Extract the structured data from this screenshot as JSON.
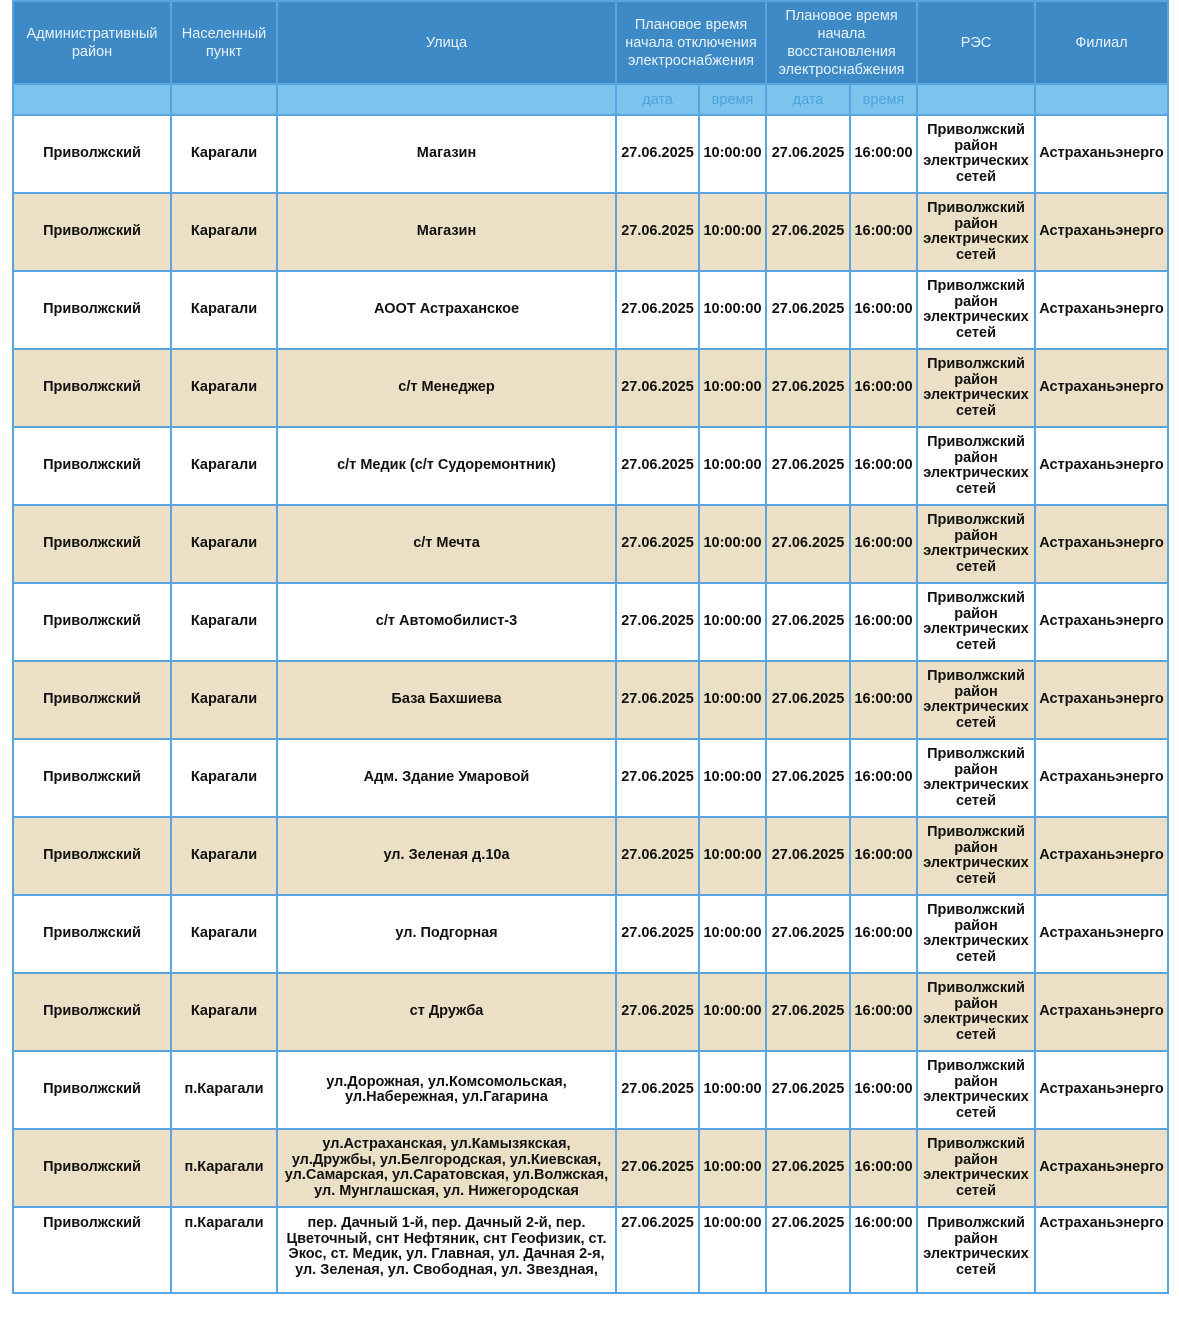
{
  "headers": {
    "district": "Административный район",
    "locality": "Населенный пункт",
    "street": "Улица",
    "outage_start": "Плановое время начала отключения электроснабжения",
    "restore_start": "Плановое время начала восстановления электроснабжения",
    "res": "РЭС",
    "branch": "Филиал",
    "date": "дата",
    "time": "время"
  },
  "colors": {
    "header": "#3d8ac6",
    "subheader": "#7cc4ee",
    "alt_row": "#ebdfc6",
    "border": "#5aa5e0"
  },
  "rows": [
    {
      "district": "Приволжский",
      "locality": "Карагали",
      "street": "Магазин",
      "off_date": "27.06.2025",
      "off_time": "10:00:00",
      "on_date": "27.06.2025",
      "on_time": "16:00:00",
      "res": "Приволжский район электрических сетей",
      "branch": "Астраханьэнерго"
    },
    {
      "district": "Приволжский",
      "locality": "Карагали",
      "street": "Магазин",
      "off_date": "27.06.2025",
      "off_time": "10:00:00",
      "on_date": "27.06.2025",
      "on_time": "16:00:00",
      "res": "Приволжский район электрических сетей",
      "branch": "Астраханьэнерго"
    },
    {
      "district": "Приволжский",
      "locality": "Карагали",
      "street": "АООТ Астраханское",
      "off_date": "27.06.2025",
      "off_time": "10:00:00",
      "on_date": "27.06.2025",
      "on_time": "16:00:00",
      "res": "Приволжский район электрических сетей",
      "branch": "Астраханьэнерго"
    },
    {
      "district": "Приволжский",
      "locality": "Карагали",
      "street": "с/т Менеджер",
      "off_date": "27.06.2025",
      "off_time": "10:00:00",
      "on_date": "27.06.2025",
      "on_time": "16:00:00",
      "res": "Приволжский район электрических сетей",
      "branch": "Астраханьэнерго"
    },
    {
      "district": "Приволжский",
      "locality": "Карагали",
      "street": "с/т Медик (с/т Судоремонтник)",
      "off_date": "27.06.2025",
      "off_time": "10:00:00",
      "on_date": "27.06.2025",
      "on_time": "16:00:00",
      "res": "Приволжский район электрических сетей",
      "branch": "Астраханьэнерго"
    },
    {
      "district": "Приволжский",
      "locality": "Карагали",
      "street": "с/т Мечта",
      "off_date": "27.06.2025",
      "off_time": "10:00:00",
      "on_date": "27.06.2025",
      "on_time": "16:00:00",
      "res": "Приволжский район электрических сетей",
      "branch": "Астраханьэнерго"
    },
    {
      "district": "Приволжский",
      "locality": "Карагали",
      "street": "с/т Автомобилист-3",
      "off_date": "27.06.2025",
      "off_time": "10:00:00",
      "on_date": "27.06.2025",
      "on_time": "16:00:00",
      "res": "Приволжский район электрических сетей",
      "branch": "Астраханьэнерго"
    },
    {
      "district": "Приволжский",
      "locality": "Карагали",
      "street": "База Бахшиева",
      "off_date": "27.06.2025",
      "off_time": "10:00:00",
      "on_date": "27.06.2025",
      "on_time": "16:00:00",
      "res": "Приволжский район электрических сетей",
      "branch": "Астраханьэнерго"
    },
    {
      "district": "Приволжский",
      "locality": "Карагали",
      "street": "Адм. Здание Умаровой",
      "off_date": "27.06.2025",
      "off_time": "10:00:00",
      "on_date": "27.06.2025",
      "on_time": "16:00:00",
      "res": "Приволжский район электрических сетей",
      "branch": "Астраханьэнерго"
    },
    {
      "district": "Приволжский",
      "locality": "Карагали",
      "street": "ул. Зеленая д.10а",
      "off_date": "27.06.2025",
      "off_time": "10:00:00",
      "on_date": "27.06.2025",
      "on_time": "16:00:00",
      "res": "Приволжский район электрических сетей",
      "branch": "Астраханьэнерго"
    },
    {
      "district": "Приволжский",
      "locality": "Карагали",
      "street": "ул. Подгорная",
      "off_date": "27.06.2025",
      "off_time": "10:00:00",
      "on_date": "27.06.2025",
      "on_time": "16:00:00",
      "res": "Приволжский район электрических сетей",
      "branch": "Астраханьэнерго"
    },
    {
      "district": "Приволжский",
      "locality": "Карагали",
      "street": "ст Дружба",
      "off_date": "27.06.2025",
      "off_time": "10:00:00",
      "on_date": "27.06.2025",
      "on_time": "16:00:00",
      "res": "Приволжский район электрических сетей",
      "branch": "Астраханьэнерго"
    },
    {
      "district": "Приволжский",
      "locality": "п.Карагали",
      "street": "ул.Дорожная, ул.Комсомольская, ул.Набережная, ул.Гагарина",
      "off_date": "27.06.2025",
      "off_time": "10:00:00",
      "on_date": "27.06.2025",
      "on_time": "16:00:00",
      "res": "Приволжский район электрических сетей",
      "branch": "Астраханьэнерго"
    },
    {
      "district": "Приволжский",
      "locality": "п.Карагали",
      "street": "ул.Астраханская, ул.Камызякская, ул.Дружбы, ул.Белгородская, ул.Киевская, ул.Самарская, ул.Саратовская, ул.Волжская, ул. Мунглашская, ул. Нижегородская",
      "off_date": "27.06.2025",
      "off_time": "10:00:00",
      "on_date": "27.06.2025",
      "on_time": "16:00:00",
      "res": "Приволжский район электрических сетей",
      "branch": "Астраханьэнерго"
    },
    {
      "district": "Приволжский",
      "locality": "п.Карагали",
      "street": "пер. Дачный 1-й, пер. Дачный 2-й, пер. Цветочный, снт Нефтяник, снт Геофизик, ст. Экос, ст. Медик, ул. Главная, ул. Дачная 2-я, ул. Зеленая, ул. Свободная, ул. Звездная,",
      "off_date": "27.06.2025",
      "off_time": "10:00:00",
      "on_date": "27.06.2025",
      "on_time": "16:00:00",
      "res": "Приволжский район электрических сетей",
      "branch": "Астраханьэнерго"
    }
  ]
}
